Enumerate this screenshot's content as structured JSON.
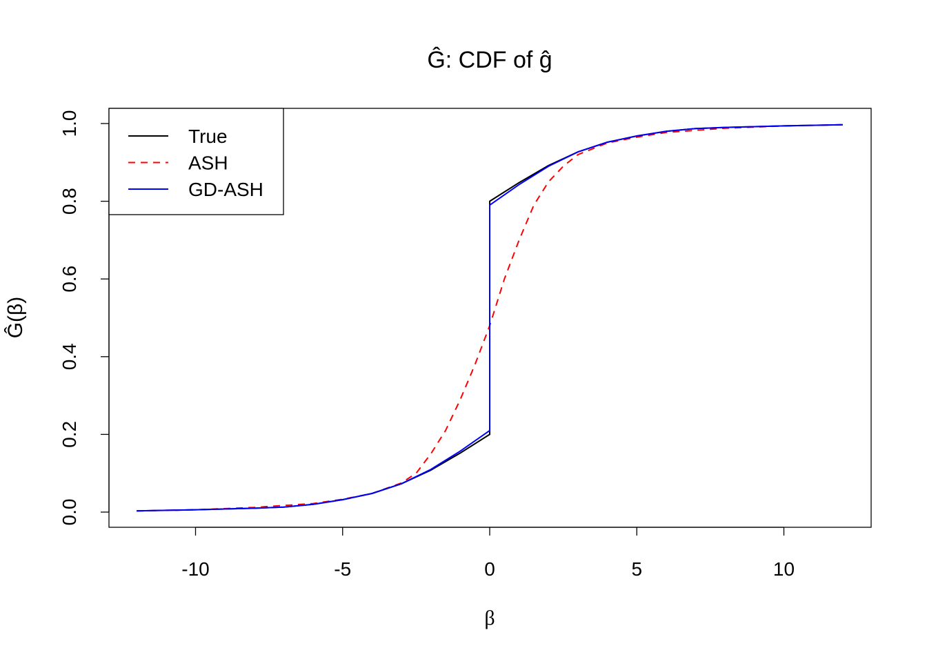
{
  "chart_data": {
    "type": "line",
    "title": "Ĝ: CDF of ĝ",
    "xlabel": "β",
    "ylabel": "Ĝ(β)",
    "xlim": [
      -12,
      12
    ],
    "ylim": [
      0,
      1
    ],
    "xticks": [
      -10,
      -5,
      0,
      5,
      10
    ],
    "xtick_labels": [
      "-10",
      "-5",
      "0",
      "5",
      "10"
    ],
    "yticks": [
      0,
      0.2,
      0.4,
      0.6,
      0.8,
      1.0
    ],
    "ytick_labels": [
      "0.0",
      "0.2",
      "0.4",
      "0.6",
      "0.8",
      "1.0"
    ],
    "grid": false,
    "legend_position": "top-left",
    "series": [
      {
        "name": "True",
        "color": "#000000",
        "dash": "solid",
        "x": [
          -12,
          -10,
          -8,
          -7,
          -6,
          -5,
          -4,
          -3,
          -2,
          -1,
          0,
          0,
          1,
          2,
          3,
          4,
          5,
          6,
          7,
          8,
          10,
          12
        ],
        "y": [
          0.003,
          0.006,
          0.01,
          0.013,
          0.02,
          0.032,
          0.048,
          0.073,
          0.108,
          0.152,
          0.2,
          0.8,
          0.848,
          0.892,
          0.927,
          0.952,
          0.968,
          0.98,
          0.987,
          0.99,
          0.994,
          0.997
        ]
      },
      {
        "name": "ASH",
        "color": "#ff0000",
        "dash": "dashed",
        "x": [
          -12,
          -10,
          -8,
          -6,
          -5,
          -4,
          -3,
          -2.5,
          -2,
          -1.5,
          -1,
          -0.5,
          0,
          0.5,
          1,
          1.5,
          2,
          2.5,
          3,
          4,
          5,
          6,
          8,
          10,
          12
        ],
        "y": [
          0.003,
          0.006,
          0.012,
          0.022,
          0.033,
          0.048,
          0.075,
          0.1,
          0.15,
          0.21,
          0.29,
          0.38,
          0.48,
          0.6,
          0.7,
          0.79,
          0.85,
          0.89,
          0.92,
          0.95,
          0.965,
          0.977,
          0.988,
          0.994,
          0.997
        ]
      },
      {
        "name": "GD-ASH",
        "color": "#0000ff",
        "dash": "solid",
        "x": [
          -12,
          -10,
          -8,
          -7,
          -6,
          -5,
          -4,
          -3,
          -2,
          -1,
          0,
          0,
          1,
          2,
          3,
          4,
          5,
          6,
          7,
          8,
          10,
          12
        ],
        "y": [
          0.003,
          0.006,
          0.01,
          0.013,
          0.02,
          0.032,
          0.048,
          0.073,
          0.11,
          0.157,
          0.21,
          0.79,
          0.843,
          0.89,
          0.927,
          0.952,
          0.968,
          0.98,
          0.987,
          0.99,
          0.994,
          0.997
        ]
      }
    ]
  }
}
